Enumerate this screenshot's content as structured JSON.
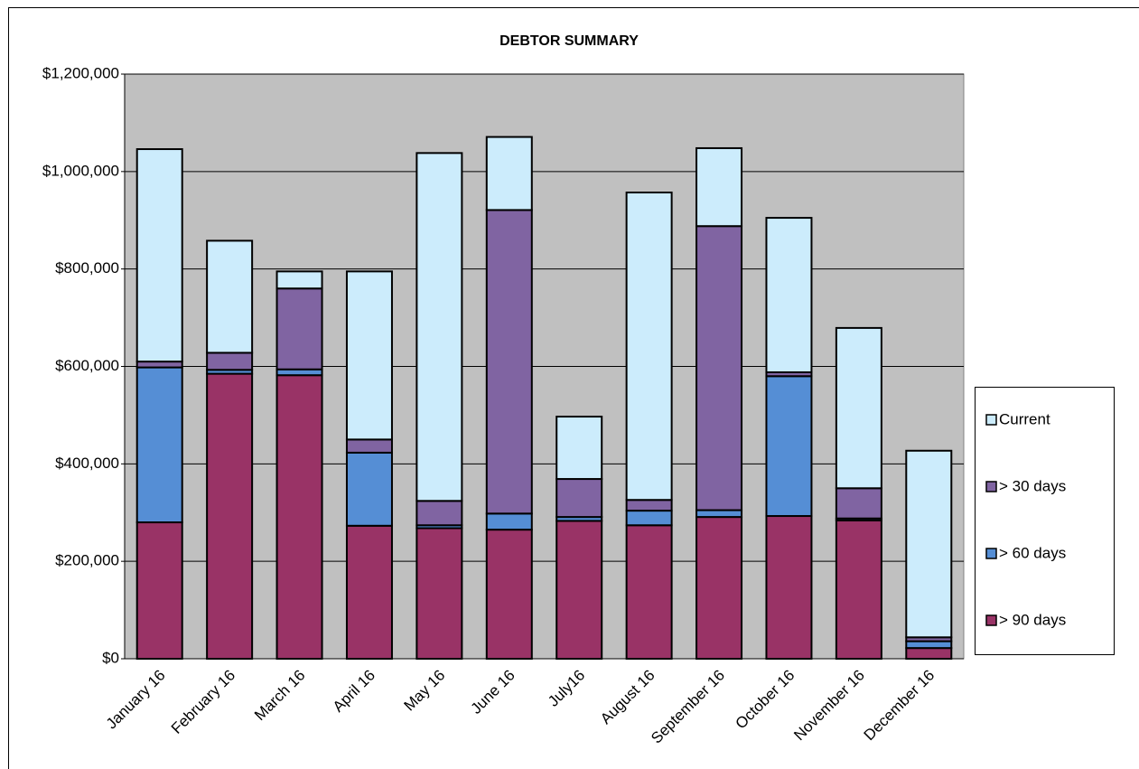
{
  "chart_data": {
    "type": "stacked-bar",
    "title": "DEBTOR SUMMARY",
    "categories": [
      "January 16",
      "February 16",
      "March 16",
      "April 16",
      "May 16",
      "June 16",
      "July16",
      "August 16",
      "September 16",
      "October 16",
      "November 16",
      "December 16"
    ],
    "series": [
      {
        "name": "> 90 days",
        "color": "#993366",
        "values": [
          280000,
          585000,
          582000,
          273000,
          268000,
          265000,
          283000,
          274000,
          291000,
          293000,
          284000,
          22000
        ]
      },
      {
        "name": "> 60 days",
        "color": "#558ed5",
        "values": [
          318000,
          8000,
          12000,
          150000,
          6000,
          33000,
          8000,
          30000,
          14000,
          287000,
          4000,
          14000
        ]
      },
      {
        "name": "> 30 days",
        "color": "#8064a2",
        "values": [
          12000,
          35000,
          166000,
          27000,
          50000,
          623000,
          78000,
          22000,
          583000,
          8000,
          62000,
          8000
        ]
      },
      {
        "name": "Current",
        "color": "#ccecfc",
        "values": [
          436000,
          230000,
          35000,
          345000,
          714000,
          150000,
          128000,
          631000,
          160000,
          317000,
          329000,
          383000
        ]
      }
    ],
    "ylim": [
      0,
      1200000
    ],
    "yticks": [
      {
        "value": 0,
        "label": "$0"
      },
      {
        "value": 200000,
        "label": "$200,000"
      },
      {
        "value": 400000,
        "label": "$400,000"
      },
      {
        "value": 600000,
        "label": "$600,000"
      },
      {
        "value": 800000,
        "label": "$800,000"
      },
      {
        "value": 1000000,
        "label": "$1,000,000"
      },
      {
        "value": 1200000,
        "label": "$1,200,000"
      }
    ],
    "grid": true,
    "legend": "right"
  }
}
